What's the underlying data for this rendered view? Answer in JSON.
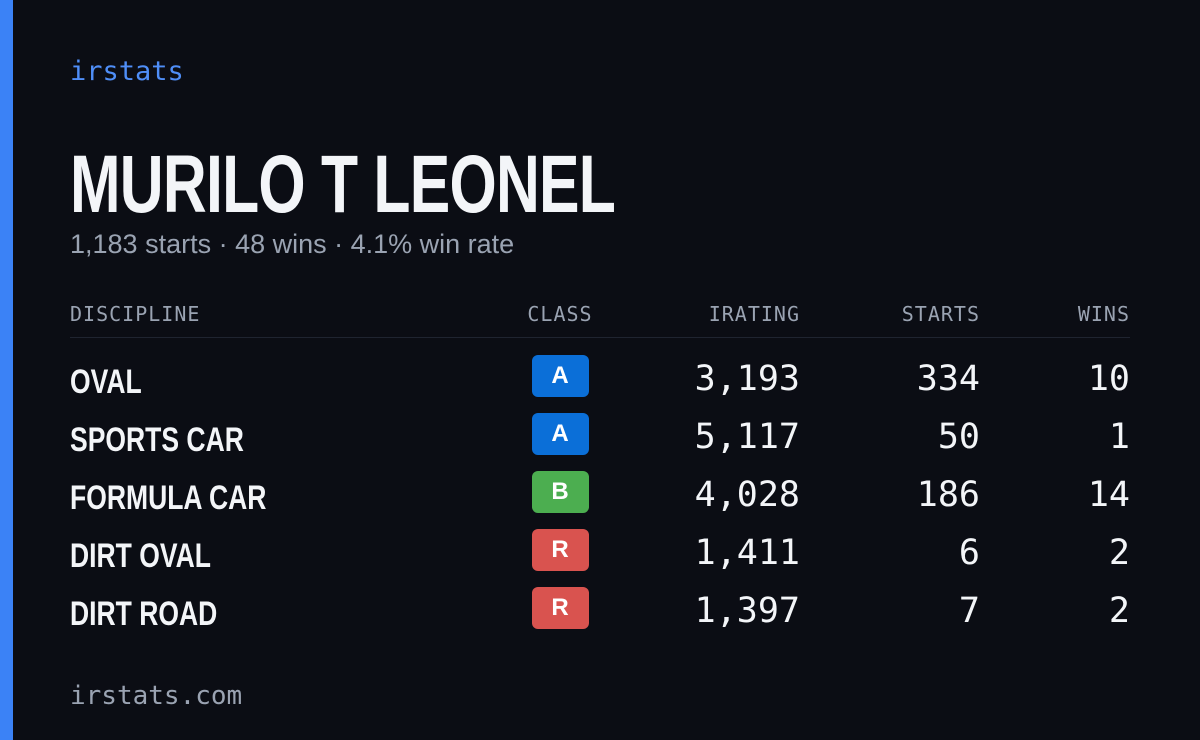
{
  "brand": "irstats",
  "driver": {
    "name": "MURILO T LEONEL",
    "summary": "1,183 starts · 48 wins · 4.1% win rate"
  },
  "table": {
    "headers": [
      "DISCIPLINE",
      "CLASS",
      "IRATING",
      "STARTS",
      "WINS"
    ],
    "rows": [
      {
        "discipline": "OVAL",
        "class": "A",
        "class_color": "#0b6fd8",
        "irating": "3,193",
        "starts": "334",
        "wins": "10"
      },
      {
        "discipline": "SPORTS CAR",
        "class": "A",
        "class_color": "#0b6fd8",
        "irating": "5,117",
        "starts": "50",
        "wins": "1"
      },
      {
        "discipline": "FORMULA CAR",
        "class": "B",
        "class_color": "#4cae50",
        "irating": "4,028",
        "starts": "186",
        "wins": "14"
      },
      {
        "discipline": "DIRT OVAL",
        "class": "R",
        "class_color": "#d9534f",
        "irating": "1,411",
        "starts": "6",
        "wins": "2"
      },
      {
        "discipline": "DIRT ROAD",
        "class": "R",
        "class_color": "#d9534f",
        "irating": "1,397",
        "starts": "7",
        "wins": "2"
      }
    ]
  },
  "footer": "irstats.com"
}
